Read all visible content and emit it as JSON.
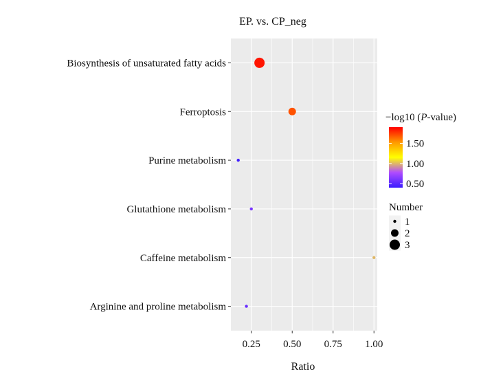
{
  "chart_data": {
    "type": "scatter",
    "title": "EP. vs. CP_neg",
    "xlabel": "Ratio",
    "ylabel": "",
    "xlim": [
      0.125,
      1.02
    ],
    "xticks": [
      0.25,
      0.5,
      0.75,
      1.0
    ],
    "xtick_labels": [
      "0.25",
      "0.50",
      "0.75",
      "1.00"
    ],
    "grid": true,
    "categories": [
      "Biosynthesis of unsaturated fatty acids",
      "Ferroptosis",
      "Purine metabolism",
      "Glutathione metabolism",
      "Caffeine metabolism",
      "Arginine and proline metabolism"
    ],
    "points": [
      {
        "category": "Biosynthesis of unsaturated fatty acids",
        "ratio": 0.3,
        "number": 3,
        "neg_log10_p": 1.85
      },
      {
        "category": "Ferroptosis",
        "ratio": 0.5,
        "number": 2,
        "neg_log10_p": 1.7
      },
      {
        "category": "Purine metabolism",
        "ratio": 0.17,
        "number": 1,
        "neg_log10_p": 0.42
      },
      {
        "category": "Glutathione metabolism",
        "ratio": 0.25,
        "number": 1,
        "neg_log10_p": 0.6
      },
      {
        "category": "Caffeine metabolism",
        "ratio": 1.0,
        "number": 1,
        "neg_log10_p": 1.0
      },
      {
        "category": "Arginine and proline metabolism",
        "ratio": 0.22,
        "number": 1,
        "neg_log10_p": 0.55
      }
    ],
    "color_legend": {
      "title_prefix": "−log10 (",
      "title_italic": "P",
      "title_suffix": "-value)",
      "min": 0.4,
      "max": 1.9,
      "ticks": [
        0.5,
        1.0,
        1.5
      ],
      "tick_labels": [
        "0.50",
        "1.00",
        "1.50"
      ],
      "colors": [
        "#3b1cff",
        "#b04cff",
        "#ffff00",
        "#ff9900",
        "#ff0000"
      ]
    },
    "size_legend": {
      "title": "Number",
      "values": [
        1,
        2,
        3
      ],
      "labels": [
        "1",
        "2",
        "3"
      ]
    },
    "panel_background": "#ebebeb",
    "grid_color": "#ffffff"
  }
}
